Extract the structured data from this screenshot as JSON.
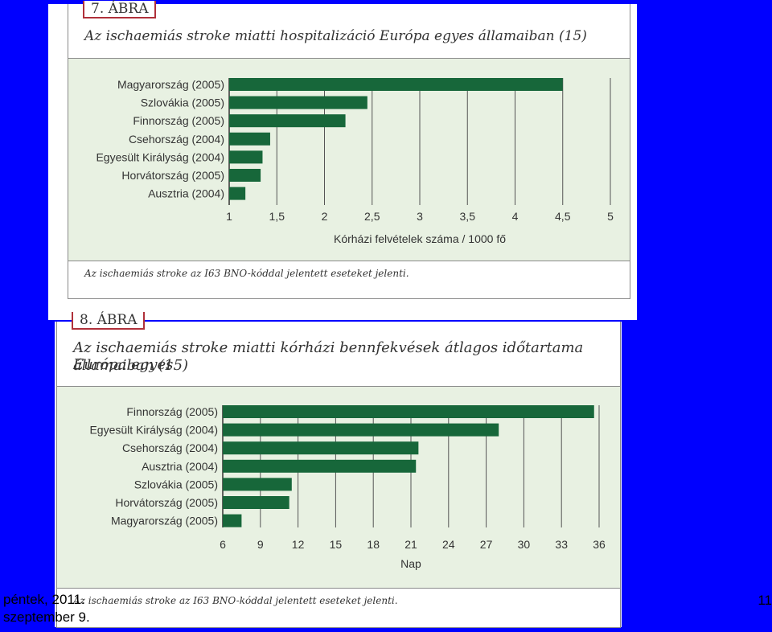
{
  "slide": {
    "footer_date": "péntek, 2011. szeptember 9.",
    "page_number": "11"
  },
  "figure1": {
    "tab_label": "7. ÁBRA",
    "title": "Az ischaemiás stroke miatti hospitalizáció Európa egyes államaiban (15)",
    "note": "Az ischaemiás stroke az I63 BNO-kóddal jelentett eseteket jelenti."
  },
  "figure2": {
    "tab_label": "8. ÁBRA",
    "title_line1": "Az ischaemiás stroke miatti kórházi bennfekvések átlagos időtartama Európa egyes",
    "title_line2": "államaiban (15)",
    "note": "Az ischaemiás stroke az I63 BNO-kóddal jelentett eseteket jelenti."
  },
  "chart_data": [
    {
      "type": "bar",
      "orientation": "horizontal",
      "categories": [
        "Magyarország (2005)",
        "Szlovákia (2005)",
        "Finnország (2005)",
        "Csehország (2004)",
        "Egyesült Királyság (2004)",
        "Horvátország (2005)",
        "Ausztria (2004)"
      ],
      "values": [
        4.5,
        2.45,
        2.22,
        1.43,
        1.35,
        1.33,
        1.17
      ],
      "xlabel": "Kórházi felvételek száma / 1000 fő",
      "xlim": [
        1,
        5
      ],
      "xticks": [
        1,
        1.5,
        2,
        2.5,
        3,
        3.5,
        4,
        4.5,
        5
      ],
      "xtick_labels": [
        "1",
        "1,5",
        "2",
        "2,5",
        "3",
        "3,5",
        "4",
        "4,5",
        "5"
      ],
      "bar_color": "#17673a",
      "grid": true
    },
    {
      "type": "bar",
      "orientation": "horizontal",
      "categories": [
        "Finnország (2005)",
        "Egyesült Királyság (2004)",
        "Csehország (2004)",
        "Ausztria (2004)",
        "Szlovákia (2005)",
        "Horvátország (2005)",
        "Magyarország (2005)"
      ],
      "values": [
        35.6,
        28.0,
        21.6,
        21.4,
        11.5,
        11.3,
        7.5
      ],
      "xlabel": "Nap",
      "xlim": [
        6,
        36
      ],
      "xticks": [
        6,
        9,
        12,
        15,
        18,
        21,
        24,
        27,
        30,
        33,
        36
      ],
      "xtick_labels": [
        "6",
        "9",
        "12",
        "15",
        "18",
        "21",
        "24",
        "27",
        "30",
        "33",
        "36"
      ],
      "bar_color": "#17673a",
      "grid": true
    }
  ]
}
